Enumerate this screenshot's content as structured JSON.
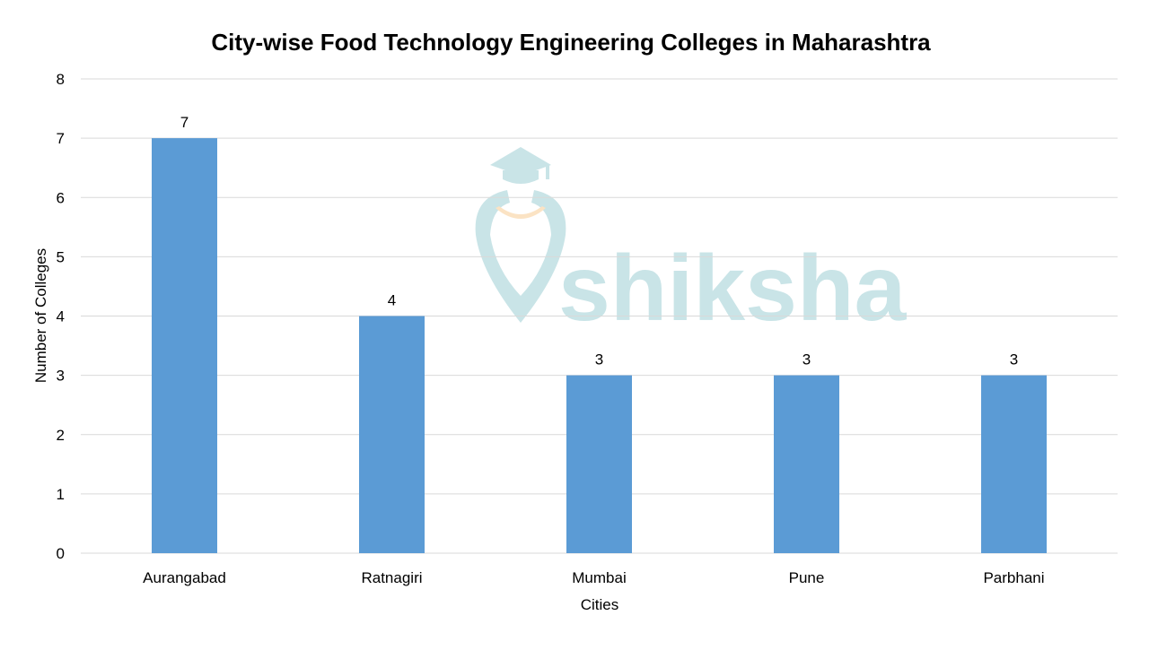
{
  "chart_data": {
    "type": "bar",
    "title": "City-wise Food Technology Engineering Colleges in Maharashtra",
    "xlabel": "Cities",
    "ylabel": "Number of Colleges",
    "categories": [
      "Aurangabad",
      "Ratnagiri",
      "Mumbai",
      "Pune",
      "Parbhani"
    ],
    "values": [
      7,
      4,
      3,
      3,
      3
    ],
    "data_labels": [
      "7",
      "4",
      "3",
      "3",
      "3"
    ],
    "ylim": [
      0,
      8
    ],
    "yticks": [
      "0",
      "1",
      "2",
      "3",
      "4",
      "5",
      "6",
      "7",
      "8"
    ],
    "grid": true,
    "legend": "none",
    "bar_color": "#5b9bd5",
    "grid_color": "#d9d9d9"
  },
  "watermark": {
    "text": "shiksha",
    "color": "#c9e4e7",
    "accent_color": "#fbe3c4",
    "icon": "graduation-cap-pin-logo"
  }
}
